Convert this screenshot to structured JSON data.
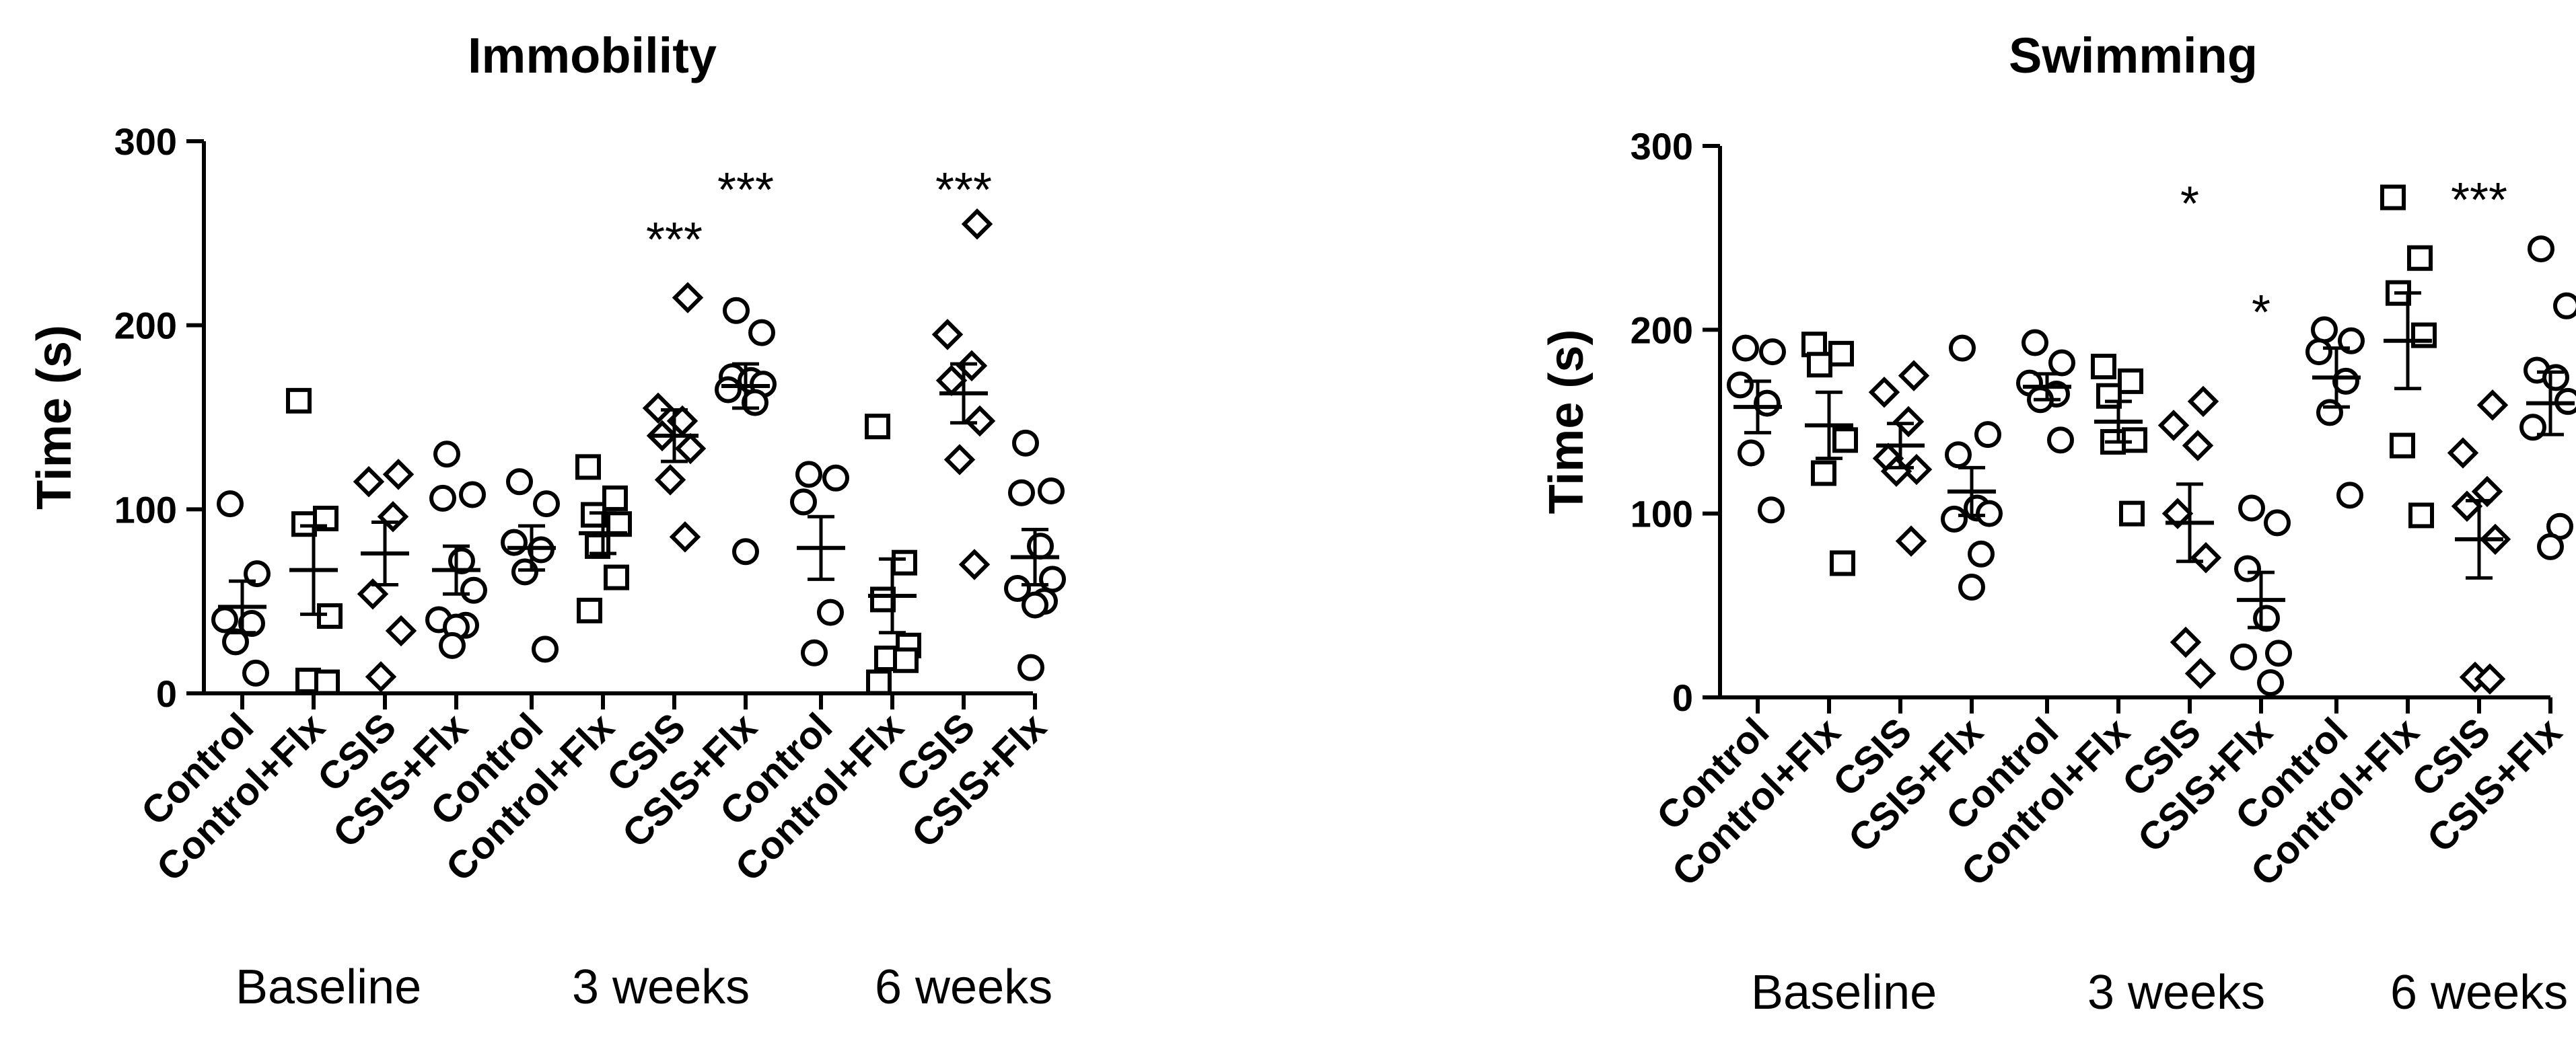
{
  "chart_data": [
    {
      "type": "scatter",
      "title": "Immobility",
      "ylabel": "Time (s)",
      "xlabel": "",
      "ylim": [
        0,
        300
      ],
      "yticks": [
        0,
        100,
        200,
        300
      ],
      "groups": [
        "Baseline",
        "3 weeks",
        "6 weeks"
      ],
      "categories": [
        "Control",
        "Control+Flx",
        "CSIS",
        "CSIS+Flx"
      ],
      "markers": [
        "circle",
        "square",
        "diamond",
        "circle"
      ],
      "panels": [
        {
          "group": "Baseline",
          "series": [
            {
              "name": "Control",
              "mean": 47,
              "sem": 14,
              "points": [
                103,
                65,
                40,
                38,
                28,
                11
              ]
            },
            {
              "name": "Control+Flx",
              "mean": 67,
              "sem": 24,
              "points": [
                159,
                95,
                92,
                42,
                7,
                6
              ]
            },
            {
              "name": "CSIS",
              "mean": 76,
              "sem": 17,
              "points": [
                119,
                115,
                96,
                54,
                34,
                9
              ]
            },
            {
              "name": "CSIS+Flx",
              "mean": 67,
              "sem": 13,
              "points": [
                130,
                108,
                106,
                72,
                56,
                40,
                37,
                36,
                26
              ]
            }
          ],
          "annotations": []
        },
        {
          "group": "3 weeks",
          "series": [
            {
              "name": "Control",
              "mean": 79,
              "sem": 12,
              "points": [
                115,
                103,
                82,
                78,
                66,
                24
              ]
            },
            {
              "name": "Control+Flx",
              "mean": 87,
              "sem": 11,
              "points": [
                123,
                106,
                97,
                92,
                80,
                63,
                45
              ]
            },
            {
              "name": "CSIS",
              "mean": 140,
              "sem": 14,
              "points": [
                215,
                155,
                148,
                140,
                133,
                116,
                85
              ]
            },
            {
              "name": "CSIS+Flx",
              "mean": 167,
              "sem": 12,
              "points": [
                208,
                196,
                172,
                170,
                168,
                165,
                158,
                77
              ]
            }
          ],
          "annotations": [
            {
              "text": "***",
              "series": "CSIS",
              "y": 250
            },
            {
              "text": "***",
              "series": "CSIS+Flx",
              "y": 277
            }
          ]
        },
        {
          "group": "6 weeks",
          "series": [
            {
              "name": "Control",
              "mean": 79,
              "sem": 17,
              "points": [
                119,
                117,
                104,
                44,
                22
              ]
            },
            {
              "name": "Control+Flx",
              "mean": 53,
              "sem": 20,
              "points": [
                145,
                71,
                51,
                26,
                19,
                18,
                6
              ]
            },
            {
              "name": "CSIS",
              "mean": 163,
              "sem": 16,
              "points": [
                255,
                195,
                178,
                170,
                148,
                127,
                70
              ]
            },
            {
              "name": "CSIS+Flx",
              "mean": 74,
              "sem": 15,
              "points": [
                136,
                110,
                109,
                80,
                62,
                57,
                50,
                48,
                14
              ]
            }
          ],
          "annotations": [
            {
              "text": "***",
              "series": "CSIS",
              "y": 277
            }
          ]
        }
      ]
    },
    {
      "type": "scatter",
      "title": "Swimming",
      "ylabel": "Time (s)",
      "xlabel": "",
      "ylim": [
        0,
        300
      ],
      "yticks": [
        0,
        100,
        200,
        300
      ],
      "groups": [
        "Baseline",
        "3 weeks",
        "6 weeks"
      ],
      "categories": [
        "Control",
        "Control+Flx",
        "CSIS",
        "CSIS+Flx"
      ],
      "markers": [
        "circle",
        "square",
        "diamond",
        "circle"
      ],
      "panels": [
        {
          "group": "Baseline",
          "series": [
            {
              "name": "Control",
              "mean": 158,
              "sem": 14,
              "points": [
                190,
                188,
                170,
                160,
                133,
                102
              ]
            },
            {
              "name": "Control+Flx",
              "mean": 148,
              "sem": 18,
              "points": [
                192,
                187,
                181,
                140,
                122,
                73
              ]
            },
            {
              "name": "CSIS",
              "mean": 137,
              "sem": 12,
              "points": [
                175,
                166,
                150,
                130,
                124,
                123,
                85
              ]
            },
            {
              "name": "CSIS+Flx",
              "mean": 112,
              "sem": 13,
              "points": [
                190,
                143,
                132,
                103,
                100,
                97,
                78,
                60
              ]
            }
          ],
          "annotations": []
        },
        {
          "group": "3 weeks",
          "series": [
            {
              "name": "Control",
              "mean": 169,
              "sem": 7,
              "points": [
                193,
                182,
                171,
                165,
                162,
                140
              ]
            },
            {
              "name": "Control+Flx",
              "mean": 150,
              "sem": 11,
              "points": [
                180,
                172,
                164,
                140,
                139,
                100
              ]
            },
            {
              "name": "CSIS",
              "mean": 95,
              "sem": 21,
              "points": [
                161,
                148,
                137,
                100,
                76,
                30,
                13
              ]
            },
            {
              "name": "CSIS+Flx",
              "mean": 53,
              "sem": 15,
              "points": [
                103,
                95,
                70,
                43,
                24,
                22,
                8
              ]
            }
          ],
          "annotations": [
            {
              "text": "*",
              "series": "CSIS",
              "y": 272
            },
            {
              "text": "*",
              "series": "CSIS+Flx",
              "y": 213
            }
          ]
        },
        {
          "group": "6 weeks",
          "series": [
            {
              "name": "Control",
              "mean": 174,
              "sem": 16,
              "points": [
                200,
                194,
                188,
                172,
                155,
                110
              ]
            },
            {
              "name": "Control+Flx",
              "mean": 194,
              "sem": 26,
              "points": [
                272,
                239,
                220,
                197,
                137,
                99
              ]
            },
            {
              "name": "CSIS",
              "mean": 86,
              "sem": 21,
              "points": [
                159,
                133,
                112,
                104,
                86,
                11,
                10
              ]
            },
            {
              "name": "CSIS+Flx",
              "mean": 160,
              "sem": 17,
              "points": [
                244,
                213,
                178,
                174,
                161,
                147,
                93,
                82
              ]
            }
          ],
          "annotations": [
            {
              "text": "***",
              "series": "CSIS",
              "y": 274
            }
          ]
        }
      ]
    }
  ]
}
